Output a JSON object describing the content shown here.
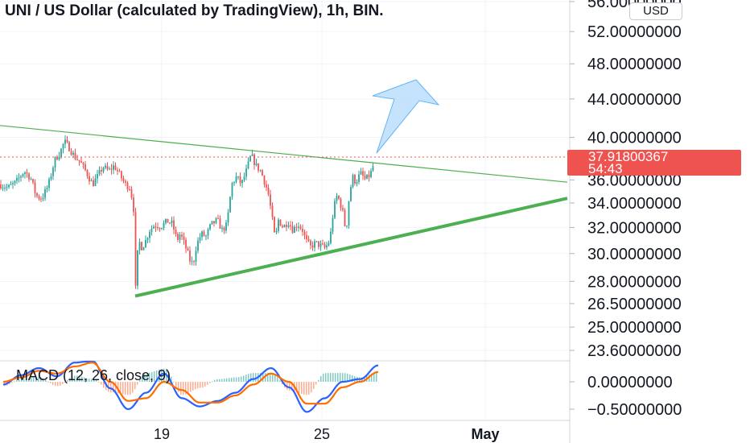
{
  "header": {
    "title": "UNI / US Dollar (calculated by TradingView), 1h, BIN.",
    "currency": "USD"
  },
  "price_tag": {
    "price": "37.91800367",
    "countdown": "54:43"
  },
  "macd": {
    "label": "MACD (12, 26, close, 9)"
  },
  "colors": {
    "up": "#26a69a",
    "down": "#ef5350",
    "trendline_thin": "#4caf50",
    "trendline_thick": "#4caf50",
    "arrow_fill": "#bbdefb",
    "arrow_stroke": "#64b5f6",
    "macd_line": "#2962ff",
    "signal_line": "#ff6d00"
  },
  "chart_data": [
    {
      "type": "candlestick",
      "title": "UNI / US Dollar (calculated by TradingView), 1h, BIN.",
      "x_ticks": [
        "19",
        "25",
        "May"
      ],
      "y_ticks": [
        "56.00000000",
        "52.00000000",
        "48.00000000",
        "44.00000000",
        "40.00000000",
        "36.00000000",
        "34.00000000",
        "32.00000000",
        "30.00000000",
        "28.00000000",
        "26.50000000",
        "25.00000000",
        "23.60000000"
      ],
      "y_scale": "log",
      "last_price": 37.918,
      "price_path": [
        [
          0,
          35.6
        ],
        [
          10,
          35.3
        ],
        [
          20,
          35.8
        ],
        [
          30,
          36.8
        ],
        [
          38,
          36.2
        ],
        [
          45,
          34.6
        ],
        [
          52,
          34.4
        ],
        [
          60,
          35.5
        ],
        [
          68,
          37.8
        ],
        [
          75,
          38.6
        ],
        [
          80,
          39.6
        ],
        [
          86,
          39.0
        ],
        [
          92,
          38.2
        ],
        [
          100,
          37.6
        ],
        [
          108,
          36.6
        ],
        [
          115,
          35.6
        ],
        [
          122,
          36.4
        ],
        [
          128,
          37.2
        ],
        [
          135,
          36.8
        ],
        [
          142,
          37.3
        ],
        [
          150,
          36.3
        ],
        [
          156,
          35.6
        ],
        [
          162,
          35.3
        ],
        [
          166,
          33.5
        ],
        [
          168,
          27.0
        ],
        [
          172,
          31.0
        ],
        [
          176,
          30.5
        ],
        [
          180,
          30.8
        ],
        [
          186,
          31.8
        ],
        [
          192,
          32.2
        ],
        [
          200,
          32.1
        ],
        [
          208,
          32.5
        ],
        [
          214,
          32.3
        ],
        [
          220,
          31.0
        ],
        [
          224,
          31.5
        ],
        [
          230,
          30.6
        ],
        [
          236,
          29.5
        ],
        [
          240,
          29.2
        ],
        [
          244,
          30.6
        ],
        [
          250,
          31.5
        ],
        [
          256,
          31.3
        ],
        [
          262,
          32.2
        ],
        [
          270,
          32.6
        ],
        [
          276,
          31.8
        ],
        [
          282,
          32.2
        ],
        [
          288,
          35.6
        ],
        [
          294,
          36.3
        ],
        [
          300,
          35.6
        ],
        [
          306,
          36.8
        ],
        [
          312,
          38.3
        ],
        [
          318,
          37.3
        ],
        [
          324,
          36.8
        ],
        [
          330,
          35.6
        ],
        [
          334,
          34.6
        ],
        [
          338,
          32.8
        ],
        [
          342,
          31.0
        ],
        [
          346,
          32.6
        ],
        [
          352,
          32.0
        ],
        [
          358,
          32.5
        ],
        [
          364,
          31.8
        ],
        [
          370,
          32.3
        ],
        [
          376,
          31.8
        ],
        [
          380,
          31.0
        ],
        [
          386,
          30.5
        ],
        [
          392,
          30.8
        ],
        [
          398,
          30.6
        ],
        [
          404,
          30.4
        ],
        [
          410,
          31.0
        ],
        [
          414,
          33.2
        ],
        [
          418,
          34.6
        ],
        [
          422,
          34.2
        ],
        [
          426,
          33.2
        ],
        [
          430,
          31.6
        ],
        [
          434,
          34.6
        ],
        [
          438,
          36.3
        ],
        [
          442,
          35.8
        ],
        [
          448,
          36.6
        ],
        [
          454,
          36.0
        ],
        [
          460,
          36.5
        ],
        [
          463,
          37.0
        ],
        [
          465,
          37.9
        ]
      ],
      "trendlines": [
        {
          "style": "thin",
          "from": [
            0,
            41.2
          ],
          "to": [
            705,
            35.8
          ]
        },
        {
          "style": "thick",
          "from": [
            168,
            27.0
          ],
          "to": [
            705,
            34.4
          ]
        }
      ]
    },
    {
      "type": "line",
      "title": "MACD (12, 26, close, 9)",
      "y_ticks": [
        "0.00000000",
        "−0.50000000"
      ],
      "series": [
        {
          "name": "MACD",
          "values": [
            -0.05,
            0.12,
            0.25,
            0.1,
            0.35,
            0.38,
            -0.12,
            -0.5,
            -0.2,
            0.15,
            -0.3,
            -0.45,
            -0.35,
            -0.2,
            0.05,
            0.25,
            -0.1,
            -0.55,
            -0.3,
            0.0,
            0.05,
            0.3
          ]
        },
        {
          "name": "Signal",
          "values": [
            0.0,
            0.08,
            0.2,
            0.15,
            0.28,
            0.35,
            0.0,
            -0.35,
            -0.3,
            0.0,
            -0.15,
            -0.38,
            -0.38,
            -0.25,
            -0.05,
            0.15,
            0.0,
            -0.4,
            -0.4,
            -0.1,
            0.0,
            0.18
          ]
        }
      ]
    }
  ]
}
